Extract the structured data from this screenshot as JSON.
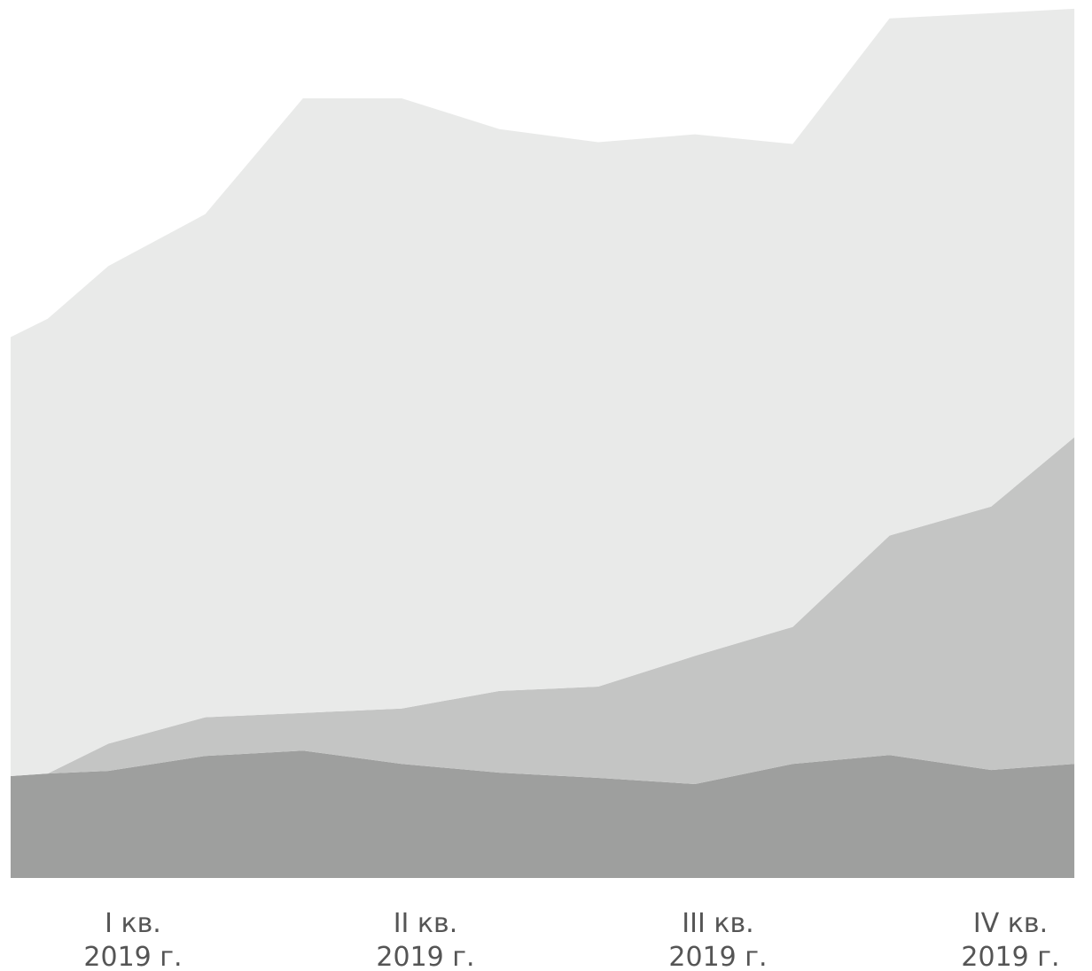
{
  "chart_data": {
    "type": "area",
    "stacked": true,
    "title": "",
    "xlabel": "",
    "ylabel": "",
    "grid": false,
    "legend": "none",
    "x_ticks": [
      {
        "line1": "I кв.",
        "line2": "2019 г.",
        "x_index": 1
      },
      {
        "line1": "II кв.",
        "line2": "2019 г.",
        "x_index": 4
      },
      {
        "line1": "III кв.",
        "line2": "2019 г.",
        "x_index": 7
      },
      {
        "line1": "IV кв.",
        "line2": "2019 г.",
        "x_index": 10
      }
    ],
    "ylim": [
      0,
      100
    ],
    "x_count": 12,
    "series": [
      {
        "color": "#9e9f9e",
        "values": [
          11.6,
          11.9,
          12.2,
          13.9,
          14.5,
          13.0,
          12.0,
          11.4,
          10.7,
          13.0,
          14.0,
          12.3,
          13.0
        ]
      },
      {
        "color": "#c4c5c4",
        "values": [
          0,
          0,
          3.1,
          4.4,
          4.3,
          6.3,
          9.3,
          10.4,
          14.6,
          15.6,
          25.0,
          30.0,
          37.2
        ]
      },
      {
        "color": "#e9eae9",
        "values": [
          50.0,
          51.8,
          54.4,
          57.3,
          70.0,
          69.5,
          64.0,
          62.0,
          59.4,
          55.0,
          58.9,
          56.2,
          48.8
        ]
      }
    ],
    "x_positions": [
      0,
      0.38,
      1,
      1.99,
      2.99,
      4,
      5,
      6.01,
      7,
      8,
      8.99,
      10.03,
      10.88
    ]
  }
}
